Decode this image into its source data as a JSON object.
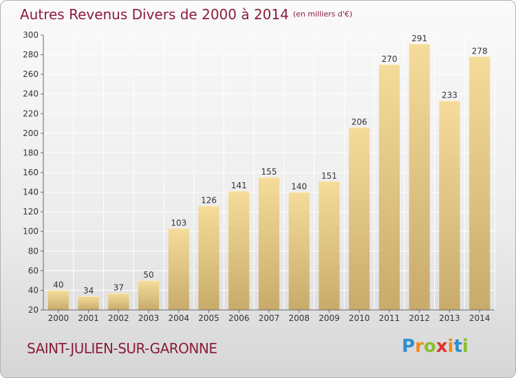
{
  "title": "Autres Revenus Divers de 2000 à 2014",
  "unit": "(en milliers d'€)",
  "commune": "SAINT-JULIEN-SUR-GARONNE",
  "logo": {
    "letters": [
      "P",
      "r",
      "o",
      "x",
      "i",
      "t",
      "i"
    ],
    "colors": [
      "#2d8fd0",
      "#f08c1a",
      "#8bbf2a",
      "#e0312b",
      "#f08c1a",
      "#2d8fd0",
      "#8bbf2a"
    ]
  },
  "colors": {
    "title": "#8a1c3a",
    "bar_light": "#f5dc9a",
    "bar_dark": "#c8ab6b",
    "grid": "#ffffff"
  },
  "chart_data": {
    "type": "bar",
    "categories": [
      "2000",
      "2001",
      "2002",
      "2003",
      "2004",
      "2005",
      "2006",
      "2007",
      "2008",
      "2009",
      "2010",
      "2011",
      "2012",
      "2013",
      "2014"
    ],
    "values": [
      40,
      34,
      37,
      50,
      103,
      126,
      141,
      155,
      140,
      151,
      206,
      270,
      291,
      233,
      278
    ],
    "ylim": [
      20,
      300
    ],
    "yticks": [
      20,
      40,
      60,
      80,
      100,
      120,
      140,
      160,
      180,
      200,
      220,
      240,
      260,
      280,
      300
    ],
    "grid": true
  }
}
